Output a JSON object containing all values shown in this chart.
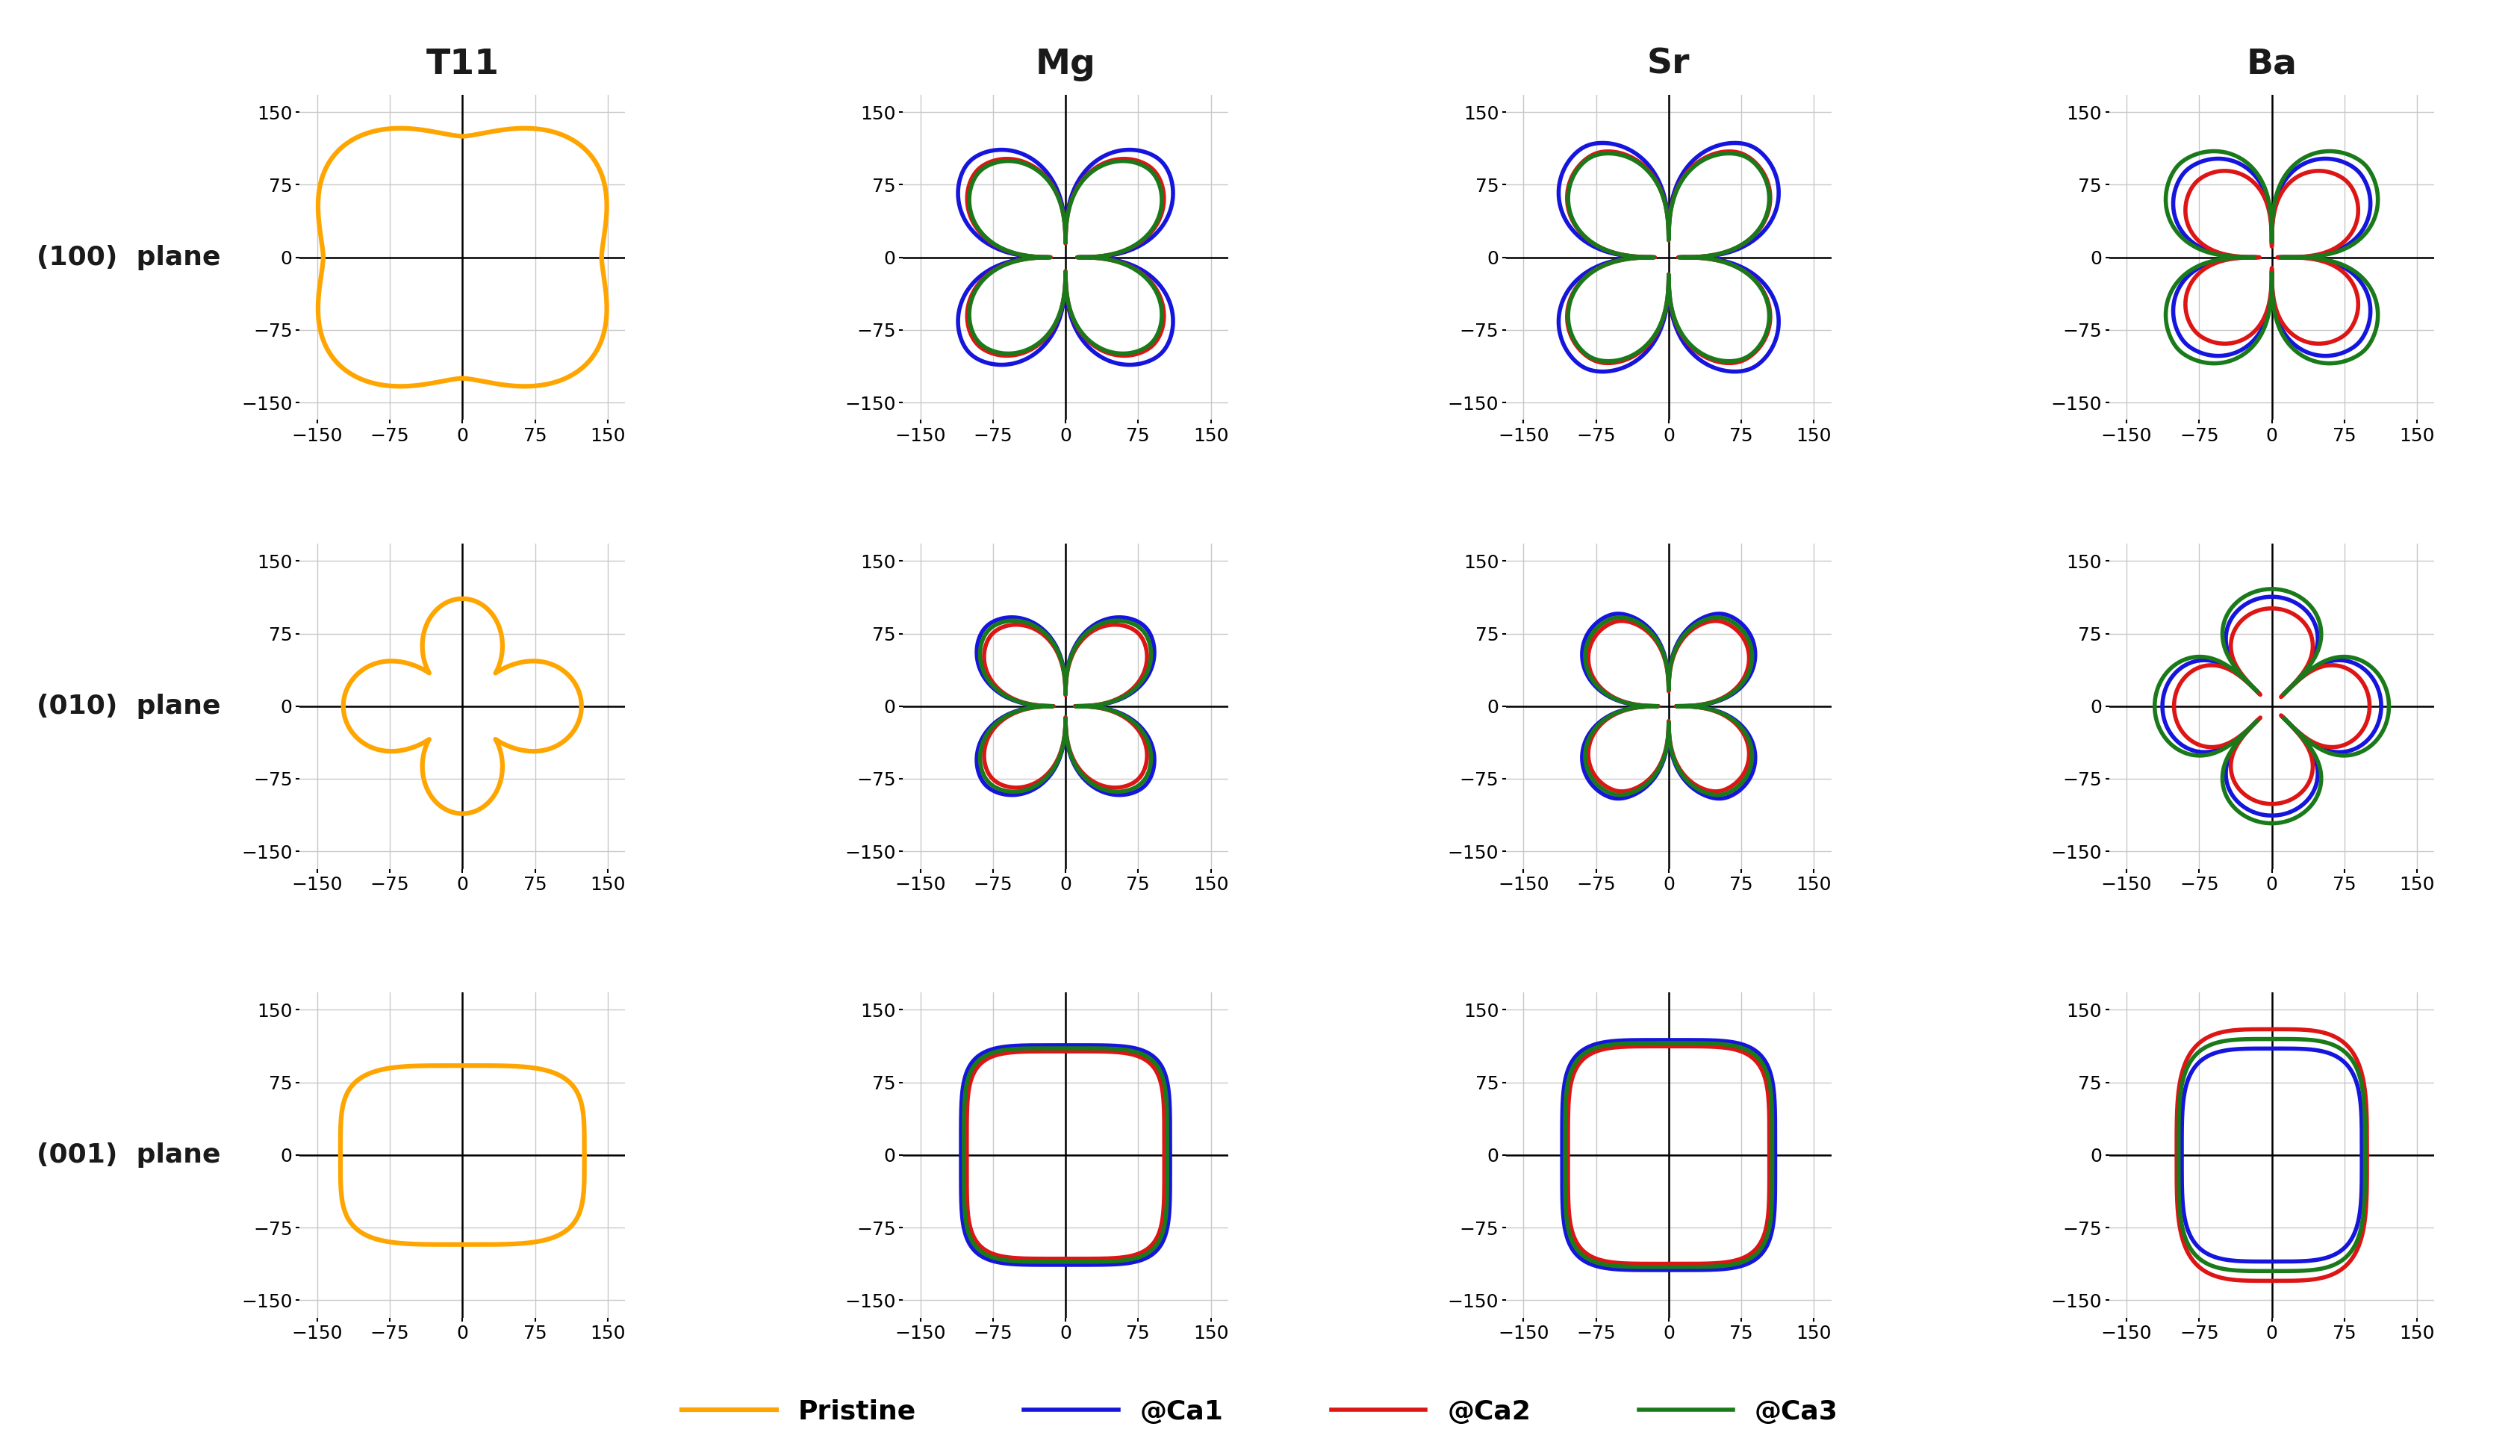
{
  "col_titles": [
    "T11",
    "Mg",
    "Sr",
    "Ba"
  ],
  "row_labels": [
    "(100)  plane",
    "(010)  plane",
    "(001)  plane"
  ],
  "colors": {
    "Pristine": "#FFA500",
    "@Ca1": "#1515DD",
    "@Ca2": "#DD1515",
    "@Ca3": "#1A7A1A"
  },
  "axis_ticks": [
    -150,
    -75,
    0,
    75,
    150
  ],
  "axis_lim": [
    -168,
    168
  ],
  "lw_pristine": 4.5,
  "lw_ca": 4.0,
  "title_fontsize": 34,
  "tick_fontsize": 18,
  "legend_fontsize": 26,
  "row_label_fontsize": 26
}
